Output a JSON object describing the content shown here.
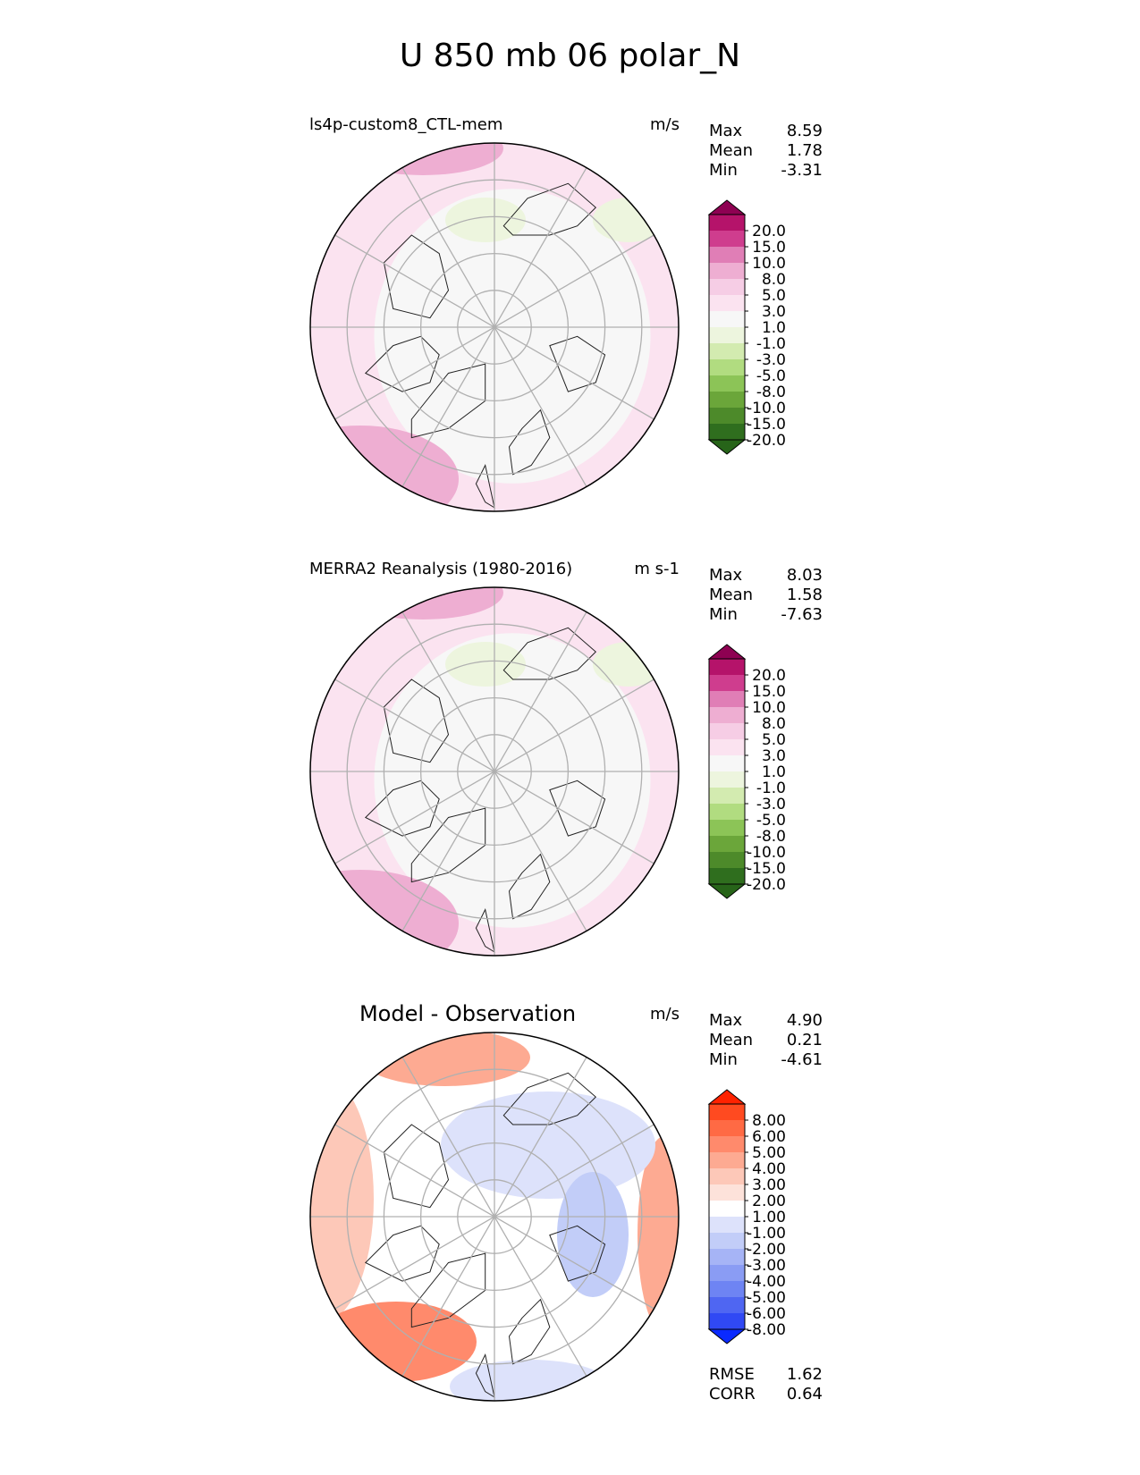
{
  "title": "U 850 mb 06 polar_N",
  "chart_data": [
    {
      "type": "heatmap",
      "projection": "north-polar-stereographic",
      "title": "ls4p-custom8_CTL-mem",
      "units": "m/s",
      "stats": {
        "max_label": "Max",
        "max": "8.59",
        "mean_label": "Mean",
        "mean": "1.78",
        "min_label": "Min",
        "min": "-3.31"
      },
      "colorbar": {
        "ticks": [
          "20.0",
          "15.0",
          "10.0",
          "8.0",
          "5.0",
          "3.0",
          "1.0",
          "-1.0",
          "-3.0",
          "-5.0",
          "-8.0",
          "-10.0",
          "-15.0",
          "-20.0"
        ],
        "colors": [
          "#8e0152",
          "#b5136a",
          "#cf3d8e",
          "#e07eb6",
          "#eeaed2",
          "#f6cde5",
          "#fbe3f0",
          "#f7f7f7",
          "#edf5de",
          "#d3ebb0",
          "#b1dc80",
          "#8cc457",
          "#6ba63a",
          "#4d8a2a",
          "#2f6e1e",
          "#276419"
        ],
        "extend": "both"
      }
    },
    {
      "type": "heatmap",
      "projection": "north-polar-stereographic",
      "title": "MERRA2 Reanalysis (1980-2016)",
      "units": "m s-1",
      "stats": {
        "max_label": "Max",
        "max": "8.03",
        "mean_label": "Mean",
        "mean": "1.58",
        "min_label": "Min",
        "min": "-7.63"
      },
      "colorbar": {
        "ticks": [
          "20.0",
          "15.0",
          "10.0",
          "8.0",
          "5.0",
          "3.0",
          "1.0",
          "-1.0",
          "-3.0",
          "-5.0",
          "-8.0",
          "-10.0",
          "-15.0",
          "-20.0"
        ],
        "colors": [
          "#8e0152",
          "#b5136a",
          "#cf3d8e",
          "#e07eb6",
          "#eeaed2",
          "#f6cde5",
          "#fbe3f0",
          "#f7f7f7",
          "#edf5de",
          "#d3ebb0",
          "#b1dc80",
          "#8cc457",
          "#6ba63a",
          "#4d8a2a",
          "#2f6e1e",
          "#276419"
        ],
        "extend": "both"
      }
    },
    {
      "type": "heatmap",
      "projection": "north-polar-stereographic",
      "title": "Model - Observation",
      "units": "m/s",
      "stats": {
        "max_label": "Max",
        "max": "4.90",
        "mean_label": "Mean",
        "mean": "0.21",
        "min_label": "Min",
        "min": "-4.61"
      },
      "metrics": {
        "rmse_label": "RMSE",
        "rmse": "1.62",
        "corr_label": "CORR",
        "corr": "0.64"
      },
      "colorbar": {
        "ticks": [
          "8.00",
          "6.00",
          "5.00",
          "4.00",
          "3.00",
          "2.00",
          "1.00",
          "-1.00",
          "-2.00",
          "-3.00",
          "-4.00",
          "-5.00",
          "-6.00",
          "-8.00"
        ],
        "colors": [
          "#ff2200",
          "#ff4a20",
          "#ff6a44",
          "#ff8a6c",
          "#fdaa92",
          "#fdc8b8",
          "#fde2da",
          "#ffffff",
          "#dde2fb",
          "#c2cdf8",
          "#a6b4f6",
          "#8a9cf4",
          "#6e84f3",
          "#4f66f2",
          "#3049f4",
          "#0a2aff"
        ],
        "extend": "both"
      }
    }
  ]
}
